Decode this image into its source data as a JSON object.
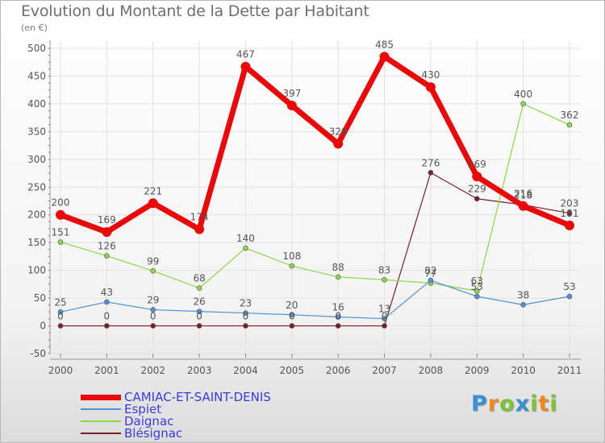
{
  "chart_data": {
    "type": "line",
    "title": "Evolution du Montant de la Dette par Habitant",
    "subtitle": "(en €)",
    "xlabel": "",
    "ylabel": "",
    "ylim": [
      -50,
      500
    ],
    "yticks": [
      -50,
      0,
      50,
      100,
      150,
      200,
      250,
      300,
      350,
      400,
      450,
      500
    ],
    "categories": [
      "2000",
      "2001",
      "2002",
      "2003",
      "2004",
      "2005",
      "2006",
      "2007",
      "2008",
      "2009",
      "2010",
      "2011"
    ],
    "legend_position": "bottom-left",
    "series": [
      {
        "name": "CAMIAC-ET-SAINT-DENIS",
        "color": "#e8090a",
        "values": [
          200,
          169,
          221,
          174,
          467,
          397,
          328,
          485,
          430,
          269,
          216,
          181
        ]
      },
      {
        "name": "Espiet",
        "color": "#4f93d1",
        "values": [
          25,
          43,
          29,
          26,
          23,
          20,
          16,
          13,
          82,
          53,
          38,
          53
        ]
      },
      {
        "name": "Daignac",
        "color": "#8ed649",
        "values": [
          151,
          126,
          99,
          68,
          140,
          108,
          88,
          83,
          77,
          63,
          400,
          362
        ]
      },
      {
        "name": "Blésignac",
        "color": "#7a1f27",
        "values": [
          0,
          0,
          0,
          0,
          0,
          0,
          0,
          0,
          276,
          229,
          218,
          203
        ]
      }
    ]
  },
  "brand": {
    "letters": [
      "P",
      "r",
      "o",
      "x",
      "i",
      "t",
      "i"
    ],
    "colors": [
      "#3a8fd6",
      "#f08a1c",
      "#7cc33a",
      "#3a8fd6",
      "#7cc33a",
      "#f08a1c",
      "#7cc33a"
    ]
  }
}
